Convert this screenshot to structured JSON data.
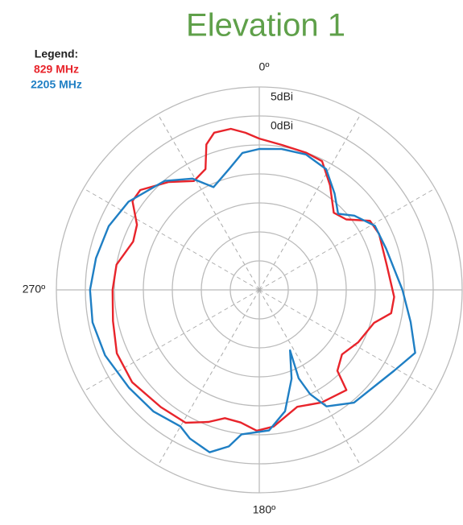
{
  "chart_data": {
    "type": "polar",
    "title": "Elevation 1",
    "legend_title": "Legend:",
    "rlim": [
      -30,
      5
    ],
    "rticks": [
      -25,
      -20,
      -15,
      -10,
      -5,
      {
        "value": 0,
        "label": "0dBi"
      },
      {
        "value": 5,
        "label": "5dBi"
      }
    ],
    "theta_grid": [
      0,
      30,
      60,
      90,
      120,
      150,
      180,
      210,
      240,
      270,
      300,
      330
    ],
    "theta_labels": [
      {
        "value": 0,
        "label": "0º"
      },
      {
        "value": 180,
        "label": "180º"
      },
      {
        "value": 270,
        "label": "270º"
      }
    ],
    "series": [
      {
        "name": "829 MHz",
        "color": "#e8242b",
        "theta": [
          0,
          9,
          19,
          26,
          34,
          44,
          51,
          58,
          65,
          79,
          93,
          100,
          106,
          118,
          128,
          136,
          139,
          151,
          162,
          174,
          181,
          188,
          195,
          201,
          209,
          220,
          234,
          246,
          258,
          270,
          280,
          291,
          298,
          305,
          310,
          320,
          329,
          336,
          340,
          344,
          350,
          355
        ],
        "values": [
          -3.9,
          -4.7,
          -5.0,
          -5.3,
          -8.2,
          -11.5,
          -10.7,
          -7.5,
          -7.2,
          -7.6,
          -6.7,
          -6.9,
          -9.4,
          -10.7,
          -11.9,
          -10.6,
          -7.1,
          -7.8,
          -8.8,
          -6.3,
          -5.7,
          -6.9,
          -7.1,
          -5.6,
          -3.8,
          -3.6,
          -2.9,
          -3.1,
          -4.2,
          -4.7,
          -5.0,
          -6.7,
          -6.1,
          -3.3,
          -3.2,
          -5.7,
          -8.1,
          -7.2,
          -3.3,
          -1.8,
          -1.8,
          -2.8
        ]
      },
      {
        "name": "2205 MHz",
        "color": "#1f7fc4",
        "theta": [
          0,
          9,
          19,
          29,
          38,
          46,
          52,
          61,
          72,
          90,
          102,
          112,
          121,
          140,
          150,
          154,
          156,
          153,
          160,
          168,
          176,
          187,
          191,
          197,
          205,
          210,
          221,
          233,
          247,
          259,
          270,
          281,
          293,
          304,
          319,
          329,
          336,
          346,
          353
        ],
        "values": [
          -5.7,
          -5.4,
          -5.3,
          -6.2,
          -8.9,
          -11.1,
          -9.2,
          -7.2,
          -7.0,
          -5.3,
          -3.3,
          -1.0,
          -2.9,
          -4.6,
          -6.8,
          -10.0,
          -13.3,
          -18.3,
          -13.7,
          -8.6,
          -5.7,
          -4.9,
          -2.5,
          -0.7,
          -1.7,
          -2.8,
          -2.2,
          -1.9,
          -1.1,
          -0.7,
          -0.8,
          -1.3,
          -1.8,
          -2.8,
          -5.1,
          -7.6,
          -10.6,
          -8.5,
          -6.2
        ]
      }
    ]
  }
}
